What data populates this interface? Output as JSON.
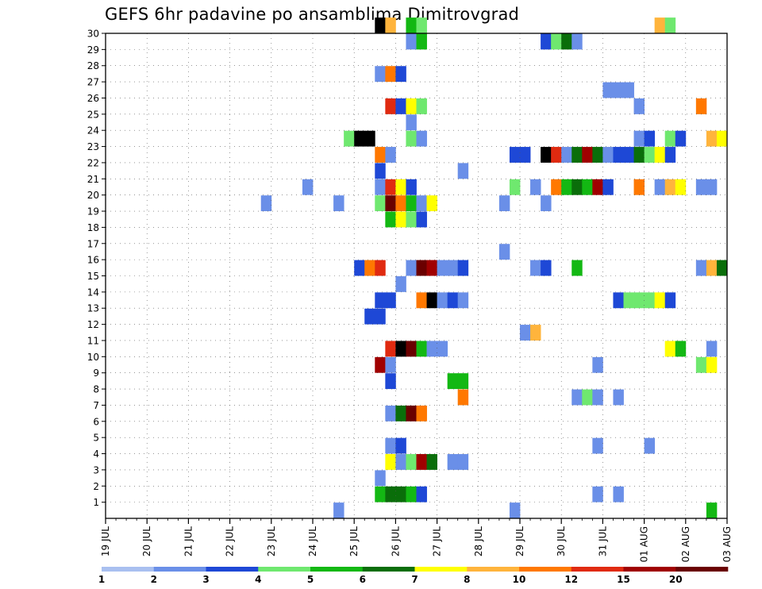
{
  "chart_data": {
    "type": "heatmap",
    "title": "GEFS 6hr padavine po ansamblima Dimitrovgrad",
    "x_tick_labels": [
      "19 JUL",
      "20 JUL",
      "21 JUL",
      "22 JUL",
      "23 JUL",
      "24 JUL",
      "25 JUL",
      "26 JUL",
      "27 JUL",
      "28 JUL",
      "29 JUL",
      "30 JUL",
      "31 JUL",
      "01 AUG",
      "02 AUG",
      "03 AUG"
    ],
    "y_tick_labels": [
      "1",
      "2",
      "3",
      "4",
      "5",
      "6",
      "7",
      "8",
      "9",
      "10",
      "11",
      "12",
      "13",
      "14",
      "15",
      "16",
      "17",
      "18",
      "19",
      "20",
      "21",
      "22",
      "23",
      "24",
      "25",
      "26",
      "27",
      "28",
      "29",
      "30"
    ],
    "xlim": [
      0,
      60
    ],
    "ylim": [
      0,
      30
    ],
    "grid": true,
    "colorbar": {
      "labels": [
        "1",
        "2",
        "3",
        "4",
        "5",
        "6",
        "7",
        "8",
        "10",
        "12",
        "15",
        "20"
      ],
      "colors": [
        "#a9c0f0",
        "#6a8fe8",
        "#1e48d6",
        "#6fe86f",
        "#13b813",
        "#0a6e0a",
        "#ffff00",
        "#ffb43c",
        "#ff7800",
        "#e02a10",
        "#a00000",
        "#6a0000"
      ]
    },
    "cells": [
      [
        26,
        30,
        12
      ],
      [
        27,
        30,
        7
      ],
      [
        29,
        30,
        4
      ],
      [
        30,
        30,
        3
      ],
      [
        53,
        30,
        7
      ],
      [
        54,
        30,
        3
      ],
      [
        29,
        29,
        1
      ],
      [
        30,
        29,
        4
      ],
      [
        42,
        29,
        2
      ],
      [
        43,
        29,
        3
      ],
      [
        44,
        29,
        5
      ],
      [
        45,
        29,
        1
      ],
      [
        26,
        27,
        1
      ],
      [
        27,
        27,
        8
      ],
      [
        28,
        27,
        2
      ],
      [
        48,
        26,
        1
      ],
      [
        49,
        26,
        1
      ],
      [
        50,
        26,
        1
      ],
      [
        27,
        25,
        9
      ],
      [
        28,
        25,
        2
      ],
      [
        29,
        25,
        6
      ],
      [
        30,
        25,
        3
      ],
      [
        51,
        25,
        1
      ],
      [
        57,
        25,
        8
      ],
      [
        29,
        24,
        1
      ],
      [
        23,
        23,
        3
      ],
      [
        24,
        23,
        12
      ],
      [
        25,
        23,
        12
      ],
      [
        29,
        23,
        3
      ],
      [
        30,
        23,
        1
      ],
      [
        51,
        23,
        1
      ],
      [
        52,
        23,
        2
      ],
      [
        54,
        23,
        3
      ],
      [
        55,
        23,
        2
      ],
      [
        58,
        23,
        7
      ],
      [
        59,
        23,
        6
      ],
      [
        26,
        22,
        8
      ],
      [
        27,
        22,
        1
      ],
      [
        39,
        22,
        2
      ],
      [
        40,
        22,
        2
      ],
      [
        42,
        22,
        12
      ],
      [
        43,
        22,
        9
      ],
      [
        44,
        22,
        1
      ],
      [
        45,
        22,
        5
      ],
      [
        46,
        22,
        10
      ],
      [
        47,
        22,
        5
      ],
      [
        48,
        22,
        1
      ],
      [
        49,
        22,
        2
      ],
      [
        50,
        22,
        2
      ],
      [
        51,
        22,
        5
      ],
      [
        52,
        22,
        3
      ],
      [
        53,
        22,
        6
      ],
      [
        54,
        22,
        2
      ],
      [
        26,
        21,
        2
      ],
      [
        34,
        21,
        1
      ],
      [
        19,
        20,
        1
      ],
      [
        26,
        20,
        1
      ],
      [
        27,
        20,
        9
      ],
      [
        28,
        20,
        6
      ],
      [
        29,
        20,
        2
      ],
      [
        39,
        20,
        3
      ],
      [
        41,
        20,
        1
      ],
      [
        43,
        20,
        8
      ],
      [
        44,
        20,
        4
      ],
      [
        45,
        20,
        5
      ],
      [
        46,
        20,
        4
      ],
      [
        47,
        20,
        10
      ],
      [
        48,
        20,
        2
      ],
      [
        51,
        20,
        8
      ],
      [
        53,
        20,
        1
      ],
      [
        54,
        20,
        7
      ],
      [
        55,
        20,
        6
      ],
      [
        57,
        20,
        1
      ],
      [
        58,
        20,
        1
      ],
      [
        15,
        19,
        1
      ],
      [
        22,
        19,
        1
      ],
      [
        26,
        19,
        3
      ],
      [
        27,
        19,
        11
      ],
      [
        28,
        19,
        8
      ],
      [
        29,
        19,
        4
      ],
      [
        30,
        19,
        1
      ],
      [
        31,
        19,
        6
      ],
      [
        38,
        19,
        1
      ],
      [
        42,
        19,
        1
      ],
      [
        27,
        18,
        4
      ],
      [
        28,
        18,
        6
      ],
      [
        29,
        18,
        3
      ],
      [
        30,
        18,
        2
      ],
      [
        38,
        16,
        1
      ],
      [
        24,
        15,
        2
      ],
      [
        25,
        15,
        8
      ],
      [
        26,
        15,
        9
      ],
      [
        29,
        15,
        1
      ],
      [
        30,
        15,
        11
      ],
      [
        31,
        15,
        10
      ],
      [
        32,
        15,
        1
      ],
      [
        33,
        15,
        1
      ],
      [
        34,
        15,
        2
      ],
      [
        41,
        15,
        1
      ],
      [
        42,
        15,
        2
      ],
      [
        45,
        15,
        4
      ],
      [
        57,
        15,
        1
      ],
      [
        58,
        15,
        7
      ],
      [
        59,
        15,
        5
      ],
      [
        28,
        14,
        1
      ],
      [
        26,
        13,
        2
      ],
      [
        27,
        13,
        2
      ],
      [
        30,
        13,
        8
      ],
      [
        31,
        13,
        12
      ],
      [
        32,
        13,
        1
      ],
      [
        33,
        13,
        2
      ],
      [
        34,
        13,
        1
      ],
      [
        49,
        13,
        2
      ],
      [
        50,
        13,
        3
      ],
      [
        51,
        13,
        3
      ],
      [
        52,
        13,
        3
      ],
      [
        53,
        13,
        6
      ],
      [
        54,
        13,
        2
      ],
      [
        25,
        12,
        2
      ],
      [
        26,
        12,
        2
      ],
      [
        40,
        11,
        1
      ],
      [
        41,
        11,
        7
      ],
      [
        27,
        10,
        9
      ],
      [
        28,
        10,
        12
      ],
      [
        29,
        10,
        11
      ],
      [
        30,
        10,
        4
      ],
      [
        31,
        10,
        1
      ],
      [
        32,
        10,
        1
      ],
      [
        54,
        10,
        6
      ],
      [
        55,
        10,
        4
      ],
      [
        58,
        10,
        1
      ],
      [
        26,
        9,
        10
      ],
      [
        27,
        9,
        1
      ],
      [
        47,
        9,
        1
      ],
      [
        57,
        9,
        3
      ],
      [
        58,
        9,
        6
      ],
      [
        27,
        8,
        2
      ],
      [
        33,
        8,
        4
      ],
      [
        34,
        8,
        4
      ],
      [
        34,
        7,
        8
      ],
      [
        45,
        7,
        1
      ],
      [
        46,
        7,
        3
      ],
      [
        47,
        7,
        1
      ],
      [
        49,
        7,
        1
      ],
      [
        27,
        6,
        1
      ],
      [
        28,
        6,
        5
      ],
      [
        29,
        6,
        11
      ],
      [
        30,
        6,
        8
      ],
      [
        27,
        4,
        1
      ],
      [
        28,
        4,
        2
      ],
      [
        47,
        4,
        1
      ],
      [
        52,
        4,
        1
      ],
      [
        27,
        3,
        6
      ],
      [
        28,
        3,
        1
      ],
      [
        29,
        3,
        3
      ],
      [
        30,
        3,
        10
      ],
      [
        31,
        3,
        5
      ],
      [
        33,
        3,
        1
      ],
      [
        34,
        3,
        1
      ],
      [
        26,
        2,
        1
      ],
      [
        26,
        1,
        4
      ],
      [
        27,
        1,
        5
      ],
      [
        28,
        1,
        5
      ],
      [
        29,
        1,
        4
      ],
      [
        30,
        1,
        2
      ],
      [
        47,
        1,
        1
      ],
      [
        49,
        1,
        1
      ],
      [
        22,
        0,
        1
      ],
      [
        39,
        0,
        1
      ],
      [
        58,
        0,
        4
      ]
    ]
  }
}
